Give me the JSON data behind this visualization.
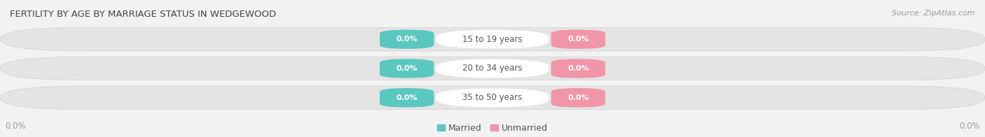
{
  "title": "FERTILITY BY AGE BY MARRIAGE STATUS IN WEDGEWOOD",
  "source": "Source: ZipAtlas.com",
  "age_groups": [
    "15 to 19 years",
    "20 to 34 years",
    "35 to 50 years"
  ],
  "married_values": [
    0.0,
    0.0,
    0.0
  ],
  "unmarried_values": [
    0.0,
    0.0,
    0.0
  ],
  "married_color": "#5BC8C0",
  "unmarried_color": "#F096A8",
  "bar_bg_color": "#E4E4E4",
  "bar_border_color": "#D0D0D0",
  "center_pill_color": "#FFFFFF",
  "title_fontsize": 9.5,
  "source_fontsize": 8,
  "label_fontsize": 8.5,
  "value_fontsize": 8,
  "tick_fontsize": 8.5,
  "legend_fontsize": 9,
  "left_axis_label": "0.0%",
  "right_axis_label": "0.0%",
  "background_color": "#F2F2F2"
}
